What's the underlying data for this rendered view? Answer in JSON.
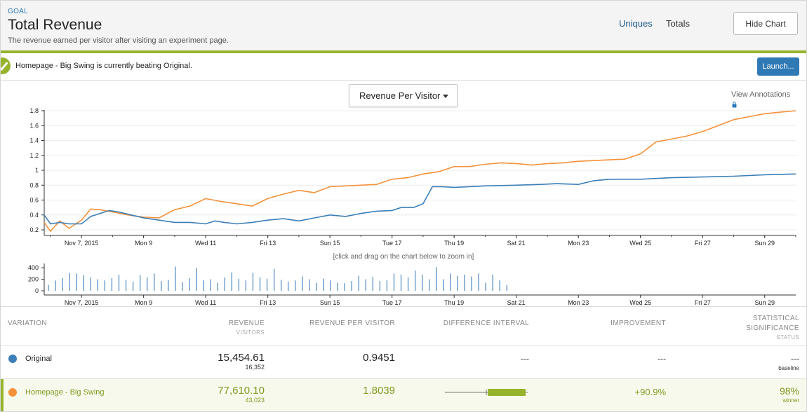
{
  "header": {
    "goal_label": "GOAL",
    "title": "Total Revenue",
    "subtitle": "The revenue earned per visitor after visiting an experiment page.",
    "tabs": [
      "Uniques",
      "Totals"
    ],
    "hide_chart_label": "Hide Chart"
  },
  "banner": {
    "message": "Homepage - Big Swing is currently beating Original.",
    "launch_label": "Launch..."
  },
  "chart": {
    "metric_dropdown": "Revenue Per Visitor",
    "view_annotations": "View Annotations",
    "zoom_hint": "[click and drag on the chart below to zoom in]",
    "icon_lock": "lock-icon"
  },
  "chart_data": [
    {
      "type": "line",
      "x_ticks": [
        "Nov 7, 2015",
        "Mon 9",
        "Wed 11",
        "Fri 13",
        "Sun 15",
        "Tue 17",
        "Thu 19",
        "Sat 21",
        "Mon 23",
        "Wed 25",
        "Fri 27",
        "Sun 29"
      ],
      "y_ticks": [
        "0.2",
        "0.4",
        "0.6",
        "0.8",
        "1",
        "1.2",
        "1.4",
        "1.6",
        "1.8"
      ],
      "ylim": [
        0.2,
        1.8
      ],
      "grid": true,
      "series": [
        {
          "name": "Original",
          "color": "#3b7fb8",
          "x": [
            5.8,
            6.0,
            6.3,
            6.6,
            7.0,
            7.3,
            7.6,
            7.9,
            8.2,
            8.6,
            9.0,
            9.5,
            10.0,
            10.5,
            11.0,
            11.3,
            11.6,
            12.0,
            12.5,
            13.0,
            13.5,
            14.0,
            14.5,
            15.0,
            15.5,
            16.0,
            16.5,
            17.0,
            17.3,
            17.7,
            18.0,
            18.3,
            18.6,
            19.0,
            19.5,
            20.0,
            21.0,
            21.8,
            22.3,
            23.0,
            23.5,
            24.0,
            25.0,
            26.0,
            27.0,
            28.0,
            29.0,
            30.0
          ],
          "y": [
            0.4,
            0.28,
            0.3,
            0.28,
            0.28,
            0.38,
            0.42,
            0.46,
            0.44,
            0.4,
            0.36,
            0.33,
            0.3,
            0.3,
            0.28,
            0.32,
            0.3,
            0.28,
            0.3,
            0.33,
            0.35,
            0.32,
            0.36,
            0.4,
            0.38,
            0.42,
            0.45,
            0.46,
            0.5,
            0.5,
            0.55,
            0.78,
            0.78,
            0.77,
            0.78,
            0.79,
            0.8,
            0.81,
            0.82,
            0.81,
            0.86,
            0.88,
            0.88,
            0.9,
            0.91,
            0.92,
            0.94,
            0.95
          ]
        },
        {
          "name": "Homepage - Big Swing",
          "color": "#f5913a",
          "x": [
            5.8,
            6.0,
            6.3,
            6.6,
            7.0,
            7.3,
            7.6,
            8.0,
            8.5,
            9.0,
            9.5,
            10.0,
            10.5,
            11.0,
            11.5,
            12.0,
            12.5,
            13.0,
            13.5,
            14.0,
            14.5,
            15.0,
            15.5,
            16.0,
            16.5,
            17.0,
            17.5,
            18.0,
            18.5,
            19.0,
            19.5,
            20.0,
            20.5,
            21.0,
            21.5,
            22.0,
            22.5,
            23.0,
            23.5,
            24.0,
            24.5,
            25.0,
            25.5,
            26.0,
            26.5,
            27.0,
            27.5,
            28.0,
            28.5,
            29.0,
            29.5,
            30.0
          ],
          "y": [
            0.3,
            0.18,
            0.32,
            0.22,
            0.33,
            0.48,
            0.47,
            0.44,
            0.4,
            0.37,
            0.36,
            0.47,
            0.52,
            0.62,
            0.58,
            0.55,
            0.52,
            0.62,
            0.68,
            0.73,
            0.7,
            0.78,
            0.79,
            0.8,
            0.81,
            0.88,
            0.9,
            0.95,
            0.98,
            1.05,
            1.05,
            1.08,
            1.1,
            1.09,
            1.07,
            1.09,
            1.1,
            1.12,
            1.13,
            1.14,
            1.15,
            1.22,
            1.38,
            1.42,
            1.46,
            1.52,
            1.6,
            1.68,
            1.72,
            1.76,
            1.78,
            1.8
          ]
        }
      ]
    },
    {
      "type": "bar",
      "y_ticks": [
        "0",
        "200",
        "400"
      ],
      "ylim": [
        0,
        450
      ],
      "values": [
        100,
        180,
        220,
        310,
        300,
        270,
        230,
        200,
        180,
        220,
        280,
        190,
        160,
        270,
        230,
        300,
        170,
        190,
        420,
        150,
        220,
        400,
        180,
        200,
        140,
        230,
        320,
        210,
        180,
        310,
        230,
        210,
        380,
        190,
        160,
        180,
        250,
        200,
        140,
        210,
        180,
        140,
        130,
        170,
        260,
        200,
        240,
        170,
        180,
        300,
        280,
        230,
        350,
        280,
        200,
        410,
        200,
        300,
        260,
        280,
        250,
        300,
        140,
        280,
        180,
        100
      ],
      "x_ticks": [
        "Nov 7, 2015",
        "Mon 9",
        "Wed 11",
        "Fri 13",
        "Sun 15",
        "Tue 17",
        "Thu 19",
        "Sat 21",
        "Mon 23",
        "Wed 25",
        "Fri 27",
        "Sun 29"
      ]
    }
  ],
  "table": {
    "headers": {
      "variation": "VARIATION",
      "revenue": "REVENUE",
      "visitors": "VISITORS",
      "rpv": "REVENUE PER VISITOR",
      "diff": "DIFFERENCE INTERVAL",
      "improvement": "IMPROVEMENT",
      "sig1": "STATISTICAL",
      "sig2": "SIGNIFICANCE",
      "status": "STATUS"
    },
    "rows": [
      {
        "name": "Original",
        "color": "#3b7fb8",
        "revenue": "15,454.61",
        "visitors": "16,352",
        "rpv": "0.9451",
        "diff": "---",
        "improvement": "---",
        "significance": "---",
        "status": "baseline"
      },
      {
        "name": "Homepage - Big Swing",
        "color": "#f5913a",
        "revenue": "77,610.10",
        "visitors": "43,023",
        "rpv": "1.8039",
        "diff": "",
        "improvement": "+90.9%",
        "significance": "98%",
        "status": "winner",
        "accent": "#96b32c"
      }
    ]
  }
}
